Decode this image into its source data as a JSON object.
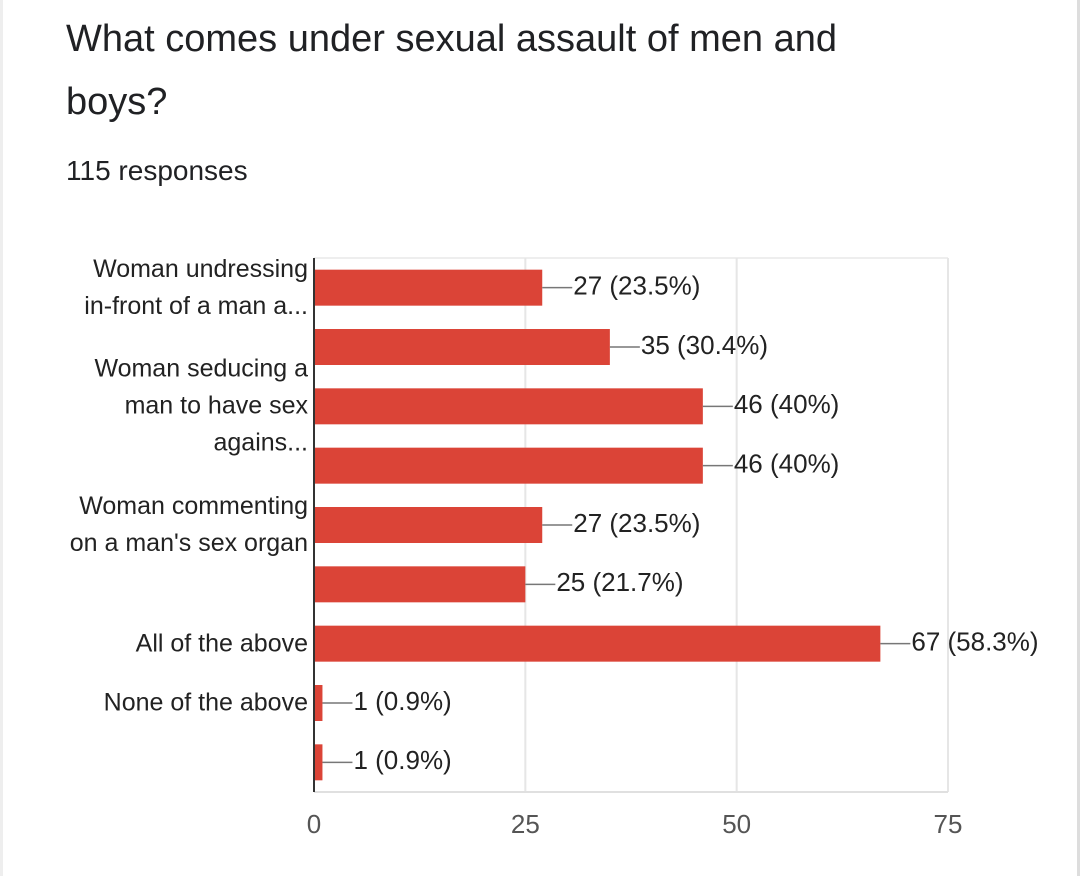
{
  "chart_data": {
    "type": "bar",
    "orientation": "horizontal",
    "title": "What comes under sexual assault of men and boys?",
    "subtitle": "115 responses",
    "categories": [
      "Woman undressing in-front of a man a...",
      null,
      "Woman seducing a man to have sex agains...",
      null,
      "Woman commenting on a man's sex organ",
      null,
      "All of the above",
      "None of the above",
      null
    ],
    "values": [
      27,
      35,
      46,
      46,
      27,
      25,
      67,
      1,
      1
    ],
    "value_labels": [
      "27 (23.5%)",
      "35 (30.4%)",
      "46 (40%)",
      "46 (40%)",
      "27 (23.5%)",
      "25 (21.7%)",
      "67 (58.3%)",
      "1 (0.9%)",
      "1 (0.9%)"
    ],
    "color": "#db4437",
    "xlim": [
      0,
      75
    ],
    "xticks": [
      0,
      25,
      50,
      75
    ],
    "grid": true
  }
}
